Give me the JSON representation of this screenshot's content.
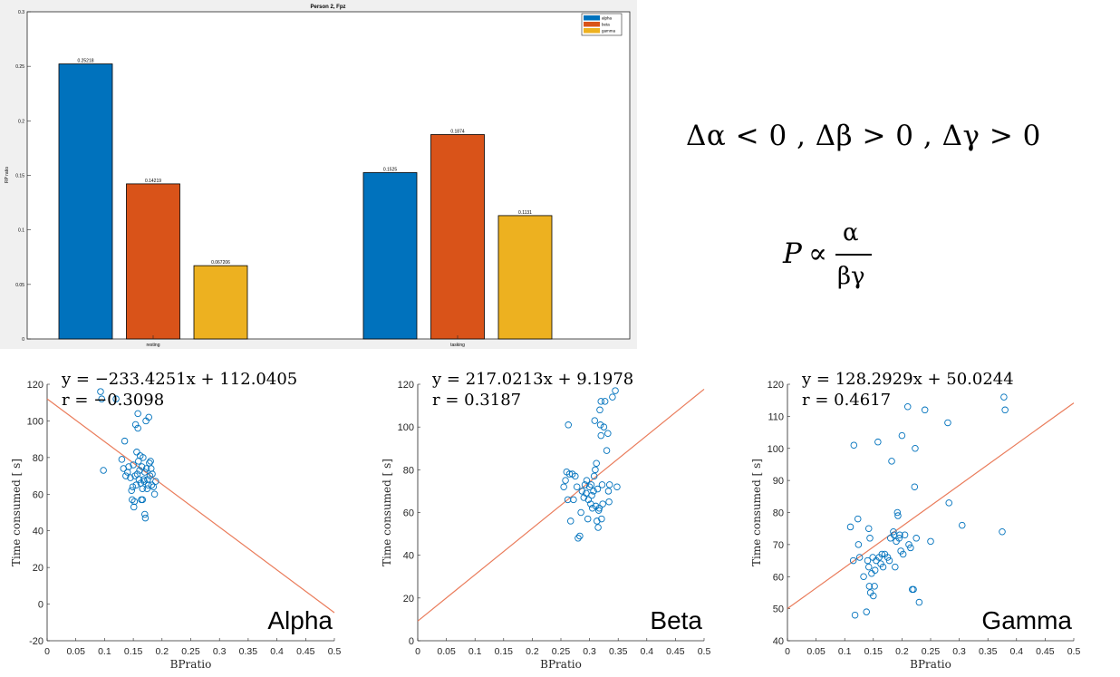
{
  "bar_chart": {
    "title": "Person 2, Fpz",
    "ylabel": "RP ratio",
    "categories": [
      "resting",
      "tasking"
    ],
    "ylim": [
      0,
      0.3
    ],
    "yticks": [
      "0",
      "0.05",
      "0.1",
      "0.15",
      "0.2",
      "0.25",
      "0.3"
    ],
    "series": [
      {
        "name": "alpha",
        "color": "#0072BD",
        "values": [
          0.25218,
          0.1525
        ],
        "labels": [
          "0.25218",
          "0.1525"
        ]
      },
      {
        "name": "beta",
        "color": "#D95319",
        "values": [
          0.14219,
          0.1874
        ],
        "labels": [
          "0.14219",
          "0.1874"
        ]
      },
      {
        "name": "gamma",
        "color": "#EDB120",
        "values": [
          0.067206,
          0.1131
        ],
        "labels": [
          "0.067206",
          "0.1131"
        ]
      }
    ]
  },
  "equations": {
    "delta_line": "Δα < 0 , Δβ > 0 , Δγ > 0",
    "prop_lhs": "P",
    "prop_symbol": "∝",
    "prop_num": "α",
    "prop_den": "βγ"
  },
  "chart_data": [
    {
      "type": "bar",
      "title": "Person 2, Fpz",
      "ylabel": "RP ratio",
      "categories": [
        "resting",
        "tasking"
      ],
      "ylim": [
        0,
        0.3
      ],
      "series": [
        {
          "name": "alpha",
          "values": [
            0.25218,
            0.1525
          ]
        },
        {
          "name": "beta",
          "values": [
            0.14219,
            0.1874
          ]
        },
        {
          "name": "gamma",
          "values": [
            0.067206,
            0.1131
          ]
        }
      ],
      "legend": "top-right",
      "grid": false
    },
    {
      "type": "scatter",
      "label": "Alpha",
      "xlabel": "BPratio",
      "ylabel": "Time consumed [ s]",
      "xlim": [
        0,
        0.5
      ],
      "ylim": [
        -20,
        120
      ],
      "xticks": [
        "0",
        "0.05",
        "0.1",
        "0.15",
        "0.2",
        "0.25",
        "0.3",
        "0.35",
        "0.4",
        "0.45",
        "0.5"
      ],
      "yticks": [
        "-20",
        "0",
        "20",
        "40",
        "60",
        "80",
        "100",
        "120"
      ],
      "equation": "y = −233.4251x + 112.0405",
      "r_text": "r = −0.3098",
      "fit": {
        "slope": -233.4251,
        "intercept": 112.0405
      },
      "points": [
        [
          0.093,
          116
        ],
        [
          0.095,
          112
        ],
        [
          0.098,
          73
        ],
        [
          0.12,
          112
        ],
        [
          0.13,
          79
        ],
        [
          0.133,
          74
        ],
        [
          0.135,
          89
        ],
        [
          0.137,
          70
        ],
        [
          0.14,
          72
        ],
        [
          0.142,
          75
        ],
        [
          0.145,
          69
        ],
        [
          0.147,
          62
        ],
        [
          0.148,
          57
        ],
        [
          0.149,
          64
        ],
        [
          0.15,
          76
        ],
        [
          0.151,
          53
        ],
        [
          0.152,
          56
        ],
        [
          0.153,
          70
        ],
        [
          0.154,
          98
        ],
        [
          0.155,
          65
        ],
        [
          0.156,
          83
        ],
        [
          0.157,
          71
        ],
        [
          0.158,
          96
        ],
        [
          0.158,
          104
        ],
        [
          0.159,
          78
        ],
        [
          0.16,
          68
        ],
        [
          0.161,
          73
        ],
        [
          0.162,
          81
        ],
        [
          0.163,
          66
        ],
        [
          0.164,
          57
        ],
        [
          0.165,
          75
        ],
        [
          0.166,
          57
        ],
        [
          0.166,
          63
        ],
        [
          0.167,
          80
        ],
        [
          0.168,
          68
        ],
        [
          0.169,
          67
        ],
        [
          0.17,
          49
        ],
        [
          0.17,
          72
        ],
        [
          0.171,
          47
        ],
        [
          0.172,
          100
        ],
        [
          0.173,
          74
        ],
        [
          0.174,
          63
        ],
        [
          0.175,
          68
        ],
        [
          0.176,
          65
        ],
        [
          0.177,
          102
        ],
        [
          0.178,
          77
        ],
        [
          0.179,
          70
        ],
        [
          0.18,
          78
        ],
        [
          0.181,
          74
        ],
        [
          0.182,
          65
        ],
        [
          0.183,
          71
        ],
        [
          0.185,
          64
        ],
        [
          0.187,
          60
        ],
        [
          0.189,
          67
        ]
      ]
    },
    {
      "type": "scatter",
      "label": "Beta",
      "xlabel": "BPratio",
      "ylabel": "Time consumed [ s]",
      "xlim": [
        0,
        0.5
      ],
      "ylim": [
        0,
        120
      ],
      "xticks": [
        "0",
        "0.05",
        "0.1",
        "0.15",
        "0.2",
        "0.25",
        "0.3",
        "0.35",
        "0.4",
        "0.45",
        "0.5"
      ],
      "yticks": [
        "0",
        "20",
        "40",
        "60",
        "80",
        "100",
        "120"
      ],
      "equation": "y = 217.0213x + 9.1978",
      "r_text": "r = 0.3187",
      "fit": {
        "slope": 217.0213,
        "intercept": 9.1978
      },
      "points": [
        [
          0.255,
          72
        ],
        [
          0.258,
          75
        ],
        [
          0.26,
          79
        ],
        [
          0.262,
          66
        ],
        [
          0.263,
          101
        ],
        [
          0.265,
          78
        ],
        [
          0.267,
          56
        ],
        [
          0.27,
          78
        ],
        [
          0.272,
          66
        ],
        [
          0.275,
          77
        ],
        [
          0.278,
          72
        ],
        [
          0.28,
          48
        ],
        [
          0.283,
          49
        ],
        [
          0.285,
          60
        ],
        [
          0.287,
          70
        ],
        [
          0.29,
          67
        ],
        [
          0.292,
          73
        ],
        [
          0.294,
          69
        ],
        [
          0.295,
          75
        ],
        [
          0.297,
          57
        ],
        [
          0.298,
          66
        ],
        [
          0.3,
          72
        ],
        [
          0.302,
          64
        ],
        [
          0.303,
          73
        ],
        [
          0.304,
          68
        ],
        [
          0.305,
          62
        ],
        [
          0.307,
          70
        ],
        [
          0.308,
          77
        ],
        [
          0.309,
          103
        ],
        [
          0.31,
          80
        ],
        [
          0.311,
          63
        ],
        [
          0.312,
          83
        ],
        [
          0.313,
          56
        ],
        [
          0.314,
          71
        ],
        [
          0.315,
          53
        ],
        [
          0.316,
          61
        ],
        [
          0.317,
          62
        ],
        [
          0.318,
          108
        ],
        [
          0.319,
          101
        ],
        [
          0.32,
          96
        ],
        [
          0.32,
          112
        ],
        [
          0.321,
          57
        ],
        [
          0.322,
          73
        ],
        [
          0.323,
          64
        ],
        [
          0.325,
          100
        ],
        [
          0.327,
          112
        ],
        [
          0.33,
          89
        ],
        [
          0.332,
          97
        ],
        [
          0.333,
          70
        ],
        [
          0.334,
          65
        ],
        [
          0.335,
          73
        ],
        [
          0.34,
          114
        ],
        [
          0.345,
          117
        ],
        [
          0.348,
          72
        ]
      ]
    },
    {
      "type": "scatter",
      "label": "Gamma",
      "xlabel": "BPratio",
      "ylabel": "Time consumed [ s]",
      "xlim": [
        0,
        0.5
      ],
      "ylim": [
        40,
        120
      ],
      "xticks": [
        "0",
        "0.05",
        "0.1",
        "0.15",
        "0.2",
        "0.25",
        "0.3",
        "0.35",
        "0.4",
        "0.45",
        "0.5"
      ],
      "yticks": [
        "40",
        "50",
        "60",
        "70",
        "80",
        "90",
        "100",
        "110",
        "120"
      ],
      "equation": "y = 128.2929x + 50.0244",
      "r_text": "r = 0.4617",
      "fit": {
        "slope": 128.2929,
        "intercept": 50.0244
      },
      "points": [
        [
          0.11,
          75.5
        ],
        [
          0.115,
          65
        ],
        [
          0.116,
          101
        ],
        [
          0.118,
          48
        ],
        [
          0.123,
          78
        ],
        [
          0.124,
          70
        ],
        [
          0.126,
          66
        ],
        [
          0.133,
          60
        ],
        [
          0.138,
          49
        ],
        [
          0.14,
          65
        ],
        [
          0.142,
          63
        ],
        [
          0.142,
          75
        ],
        [
          0.143,
          57
        ],
        [
          0.144,
          72
        ],
        [
          0.145,
          55
        ],
        [
          0.147,
          61
        ],
        [
          0.149,
          66
        ],
        [
          0.15,
          54
        ],
        [
          0.152,
          57
        ],
        [
          0.153,
          62
        ],
        [
          0.155,
          65
        ],
        [
          0.158,
          102
        ],
        [
          0.16,
          66
        ],
        [
          0.163,
          64
        ],
        [
          0.165,
          67
        ],
        [
          0.167,
          63
        ],
        [
          0.17,
          67
        ],
        [
          0.175,
          66
        ],
        [
          0.178,
          65
        ],
        [
          0.18,
          72
        ],
        [
          0.182,
          96
        ],
        [
          0.185,
          74
        ],
        [
          0.186,
          73
        ],
        [
          0.188,
          63
        ],
        [
          0.19,
          71
        ],
        [
          0.192,
          80
        ],
        [
          0.193,
          79
        ],
        [
          0.195,
          72
        ],
        [
          0.196,
          73
        ],
        [
          0.198,
          68
        ],
        [
          0.2,
          104
        ],
        [
          0.202,
          67
        ],
        [
          0.205,
          73
        ],
        [
          0.21,
          113
        ],
        [
          0.212,
          70
        ],
        [
          0.215,
          69
        ],
        [
          0.218,
          56
        ],
        [
          0.22,
          56
        ],
        [
          0.222,
          88
        ],
        [
          0.223,
          100
        ],
        [
          0.225,
          72
        ],
        [
          0.23,
          52
        ],
        [
          0.24,
          112
        ],
        [
          0.25,
          71
        ],
        [
          0.28,
          108
        ],
        [
          0.282,
          83
        ],
        [
          0.305,
          76
        ],
        [
          0.375,
          74
        ],
        [
          0.378,
          116
        ],
        [
          0.38,
          112
        ]
      ]
    }
  ]
}
